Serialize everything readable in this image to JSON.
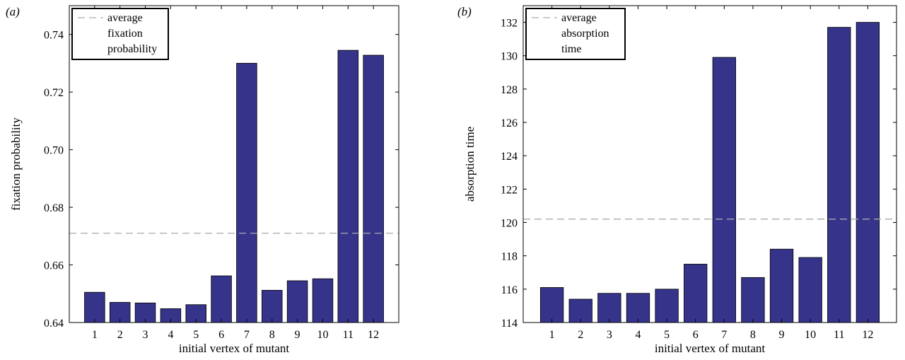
{
  "chart_data": [
    {
      "panel_label": "(a)",
      "type": "bar",
      "categories": [
        "1",
        "2",
        "3",
        "4",
        "5",
        "6",
        "7",
        "8",
        "9",
        "10",
        "11",
        "12"
      ],
      "values": [
        0.6505,
        0.647,
        0.6468,
        0.6448,
        0.6462,
        0.6562,
        0.73,
        0.6512,
        0.6545,
        0.6552,
        0.7345,
        0.7328
      ],
      "average": 0.671,
      "xlabel": "initial vertex of mutant",
      "ylabel": "fixation probability",
      "ylim": [
        0.64,
        0.75
      ],
      "yticks": [
        0.64,
        0.66,
        0.68,
        0.7,
        0.72,
        0.74
      ],
      "ytick_labels": [
        "0.64",
        "0.66",
        "0.68",
        "0.70",
        "0.72",
        "0.74"
      ],
      "legend": {
        "placement": "top-left",
        "lines": [
          "average",
          "fixation",
          "probability"
        ]
      },
      "bar_color": "#35338a",
      "average_line_color": "#aaaaaa",
      "grid": false
    },
    {
      "panel_label": "(b)",
      "type": "bar",
      "categories": [
        "1",
        "2",
        "3",
        "4",
        "5",
        "6",
        "7",
        "8",
        "9",
        "10",
        "11",
        "12"
      ],
      "values": [
        116.1,
        115.4,
        115.75,
        115.75,
        116.0,
        117.5,
        129.9,
        116.7,
        118.4,
        117.9,
        131.7,
        132.0
      ],
      "average": 120.2,
      "xlabel": "initial vertex of mutant",
      "ylabel": "absorption time",
      "ylim": [
        114,
        133
      ],
      "yticks": [
        114,
        116,
        118,
        120,
        122,
        124,
        126,
        128,
        130,
        132
      ],
      "ytick_labels": [
        "114",
        "116",
        "118",
        "120",
        "122",
        "124",
        "126",
        "128",
        "130",
        "132"
      ],
      "legend": {
        "placement": "top-left",
        "lines": [
          "average",
          "absorption",
          "time"
        ]
      },
      "bar_color": "#35338a",
      "average_line_color": "#aaaaaa",
      "grid": false
    }
  ]
}
